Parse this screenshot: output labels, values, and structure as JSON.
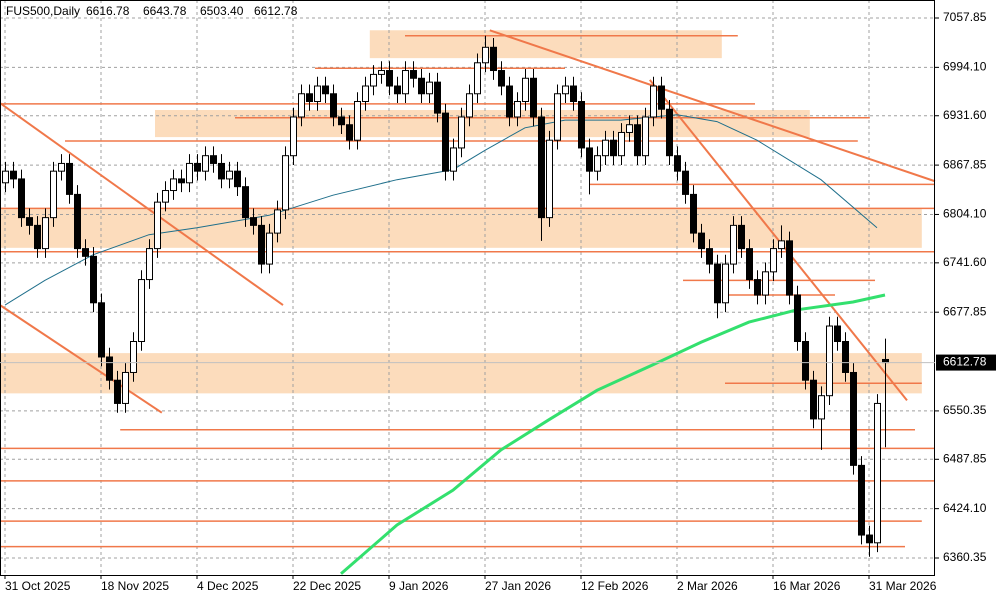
{
  "chart_data": {
    "type": "candlestick",
    "title": "FUS500,Daily",
    "header_labels": [
      "6616.78",
      "6643.78",
      "6503.40",
      "6612.78"
    ],
    "xlim": [
      -0.625,
      116.25
    ],
    "ylim": [
      6338.4,
      7081.1
    ],
    "xticks": [
      {
        "value": 0,
        "label": "31 Oct 2025"
      },
      {
        "value": 12,
        "label": "18 Nov 2025"
      },
      {
        "value": 24,
        "label": "4 Dec 2025"
      },
      {
        "value": 36,
        "label": "22 Dec 2025"
      },
      {
        "value": 48,
        "label": "9 Jan 2026"
      },
      {
        "value": 60,
        "label": "27 Jan 2026"
      },
      {
        "value": 72,
        "label": "12 Feb 2026"
      },
      {
        "value": 84,
        "label": "2 Mar 2026"
      },
      {
        "value": 96,
        "label": "16 Mar 2026"
      },
      {
        "value": 108,
        "label": "31 Mar 2026"
      }
    ],
    "yticks": [
      7057.85,
      {
        "value": 6994.1,
        "label": "6994.10"
      },
      {
        "value": 6931.6,
        "label": "6931.60"
      },
      6867.85,
      {
        "value": 6804.1,
        "label": "6804.10"
      },
      {
        "value": 6741.6,
        "label": "6741.60"
      },
      6677.85,
      6550.35,
      6487.85,
      {
        "value": 6424.1,
        "label": "6424.10"
      },
      6360.35
    ],
    "grid": true,
    "up_color": "#ffffff",
    "down_color": "#000000",
    "level_color": "#f0784a",
    "zone_color": "#fcdcbc",
    "ohlc": [
      [
        6845,
        6872,
        6833,
        6860
      ],
      [
        6860,
        6872,
        6838,
        6850
      ],
      [
        6850,
        6862,
        6788,
        6800
      ],
      [
        6800,
        6812,
        6778,
        6790
      ],
      [
        6790,
        6802,
        6748,
        6760
      ],
      [
        6760,
        6812,
        6748,
        6800
      ],
      [
        6800,
        6872,
        6788,
        6860
      ],
      [
        6860,
        6882,
        6848,
        6870
      ],
      [
        6870,
        6882,
        6818,
        6830
      ],
      [
        6830,
        6842,
        6748,
        6760
      ],
      [
        6760,
        6772,
        6738,
        6750
      ],
      [
        6750,
        6762,
        6678,
        6690
      ],
      [
        6690,
        6702,
        6608,
        6620
      ],
      [
        6620,
        6632,
        6578,
        6590
      ],
      [
        6590,
        6602,
        6548,
        6560
      ],
      [
        6560,
        6612,
        6548,
        6600
      ],
      [
        6600,
        6652,
        6588,
        6640
      ],
      [
        6640,
        6732,
        6628,
        6720
      ],
      [
        6720,
        6772,
        6708,
        6760
      ],
      [
        6760,
        6832,
        6748,
        6820
      ],
      [
        6820,
        6847,
        6808,
        6835
      ],
      [
        6835,
        6862,
        6823,
        6850
      ],
      [
        6850,
        6862,
        6833,
        6845
      ],
      [
        6845,
        6882,
        6833,
        6870
      ],
      [
        6870,
        6882,
        6848,
        6860
      ],
      [
        6860,
        6892,
        6848,
        6880
      ],
      [
        6880,
        6892,
        6858,
        6870
      ],
      [
        6870,
        6882,
        6838,
        6850
      ],
      [
        6850,
        6872,
        6838,
        6860
      ],
      [
        6860,
        6872,
        6828,
        6840
      ],
      [
        6840,
        6852,
        6788,
        6800
      ],
      [
        6800,
        6812,
        6778,
        6790
      ],
      [
        6790,
        6802,
        6728,
        6740
      ],
      [
        6740,
        6792,
        6728,
        6780
      ],
      [
        6780,
        6822,
        6768,
        6810
      ],
      [
        6810,
        6892,
        6798,
        6880
      ],
      [
        6880,
        6942,
        6868,
        6930
      ],
      [
        6930,
        6972,
        6918,
        6960
      ],
      [
        6960,
        6972,
        6938,
        6950
      ],
      [
        6950,
        6982,
        6938,
        6970
      ],
      [
        6970,
        6982,
        6948,
        6960
      ],
      [
        6960,
        6972,
        6918,
        6930
      ],
      [
        6930,
        6942,
        6908,
        6920
      ],
      [
        6920,
        6932,
        6888,
        6900
      ],
      [
        6900,
        6962,
        6888,
        6950
      ],
      [
        6950,
        6982,
        6938,
        6970
      ],
      [
        6970,
        6997,
        6958,
        6985
      ],
      [
        6985,
        7002,
        6973,
        6990
      ],
      [
        6990,
        7002,
        6958,
        6970
      ],
      [
        6970,
        6982,
        6948,
        6960
      ],
      [
        6960,
        7002,
        6948,
        6990
      ],
      [
        6990,
        7002,
        6968,
        6980
      ],
      [
        6980,
        6992,
        6948,
        6960
      ],
      [
        6960,
        6987,
        6948,
        6975
      ],
      [
        6975,
        6987,
        6923,
        6935
      ],
      [
        6935,
        6947,
        6848,
        6860
      ],
      [
        6860,
        6902,
        6848,
        6890
      ],
      [
        6890,
        6942,
        6878,
        6930
      ],
      [
        6930,
        6972,
        6918,
        6960
      ],
      [
        6960,
        7012,
        6948,
        7000
      ],
      [
        7000,
        7035,
        6988,
        7020
      ],
      [
        7020,
        7032,
        6978,
        6990
      ],
      [
        6990,
        7002,
        6958,
        6970
      ],
      [
        6970,
        6982,
        6918,
        6930
      ],
      [
        6930,
        6962,
        6918,
        6950
      ],
      [
        6950,
        6992,
        6938,
        6980
      ],
      [
        6980,
        6992,
        6918,
        6930
      ],
      [
        6930,
        6942,
        6770,
        6800
      ],
      [
        6800,
        6912,
        6788,
        6900
      ],
      [
        6900,
        6972,
        6888,
        6960
      ],
      [
        6960,
        6982,
        6948,
        6970
      ],
      [
        6970,
        6982,
        6938,
        6950
      ],
      [
        6950,
        6962,
        6878,
        6890
      ],
      [
        6890,
        6902,
        6830,
        6860
      ],
      [
        6860,
        6892,
        6848,
        6880
      ],
      [
        6880,
        6912,
        6868,
        6900
      ],
      [
        6900,
        6912,
        6868,
        6880
      ],
      [
        6880,
        6922,
        6868,
        6910
      ],
      [
        6910,
        6932,
        6898,
        6920
      ],
      [
        6920,
        6932,
        6868,
        6880
      ],
      [
        6880,
        6942,
        6868,
        6930
      ],
      [
        6930,
        6982,
        6918,
        6970
      ],
      [
        6970,
        6982,
        6928,
        6940
      ],
      [
        6940,
        6952,
        6868,
        6880
      ],
      [
        6880,
        6892,
        6848,
        6860
      ],
      [
        6860,
        6872,
        6818,
        6830
      ],
      [
        6830,
        6842,
        6768,
        6780
      ],
      [
        6780,
        6792,
        6748,
        6760
      ],
      [
        6760,
        6772,
        6728,
        6740
      ],
      [
        6740,
        6752,
        6670,
        6690
      ],
      [
        6690,
        6752,
        6678,
        6740
      ],
      [
        6740,
        6802,
        6728,
        6790
      ],
      [
        6790,
        6802,
        6748,
        6760
      ],
      [
        6760,
        6772,
        6708,
        6720
      ],
      [
        6720,
        6732,
        6688,
        6700
      ],
      [
        6700,
        6742,
        6688,
        6730
      ],
      [
        6730,
        6772,
        6718,
        6760
      ],
      [
        6760,
        6790,
        6748,
        6770
      ],
      [
        6770,
        6782,
        6688,
        6700
      ],
      [
        6700,
        6712,
        6628,
        6640
      ],
      [
        6640,
        6652,
        6578,
        6590
      ],
      [
        6590,
        6602,
        6528,
        6540
      ],
      [
        6540,
        6582,
        6500,
        6570
      ],
      [
        6570,
        6672,
        6558,
        6660
      ],
      [
        6660,
        6672,
        6628,
        6640
      ],
      [
        6640,
        6652,
        6588,
        6600
      ],
      [
        6600,
        6612,
        6468,
        6480
      ],
      [
        6480,
        6492,
        6378,
        6390
      ],
      [
        6390,
        6402,
        6362,
        6380
      ],
      [
        6380,
        6572,
        6368,
        6560
      ],
      [
        6616.78,
        6643.78,
        6503.4,
        6612.78
      ]
    ],
    "ma": [
      {
        "color": "#1f6f8b",
        "width": 1,
        "x": [
          0,
          5,
          11,
          18,
          24,
          33,
          41,
          49,
          56,
          60,
          65,
          70,
          77,
          84,
          89,
          94,
          102,
          109
        ],
        "values": [
          6687,
          6719,
          6752,
          6778,
          6787,
          6803,
          6829,
          6849,
          6862,
          6887,
          6916,
          6926,
          6926,
          6933,
          6924,
          6900,
          6849,
          6787
        ]
      },
      {
        "color": "#33e06e",
        "width": 3,
        "x": [
          42,
          49,
          56,
          62,
          68,
          74,
          81,
          87,
          93,
          99,
          106,
          110
        ],
        "values": [
          6340,
          6403,
          6448,
          6500,
          6539,
          6577,
          6610,
          6639,
          6665,
          6681,
          6691,
          6700
        ]
      }
    ],
    "zones": [
      {
        "x": [
          45.6,
          89.6
        ],
        "range": [
          7006,
          7042
        ]
      },
      {
        "x": [
          18.75,
          100.6
        ],
        "range": [
          6904,
          6939
        ]
      },
      {
        "x": [
          -0.625,
          114.6
        ],
        "range": [
          6761,
          6812
        ]
      },
      {
        "x": [
          -0.625,
          114.6
        ],
        "range": [
          6573,
          6625
        ]
      }
    ],
    "levels": [
      {
        "x": [
          50,
          91.6
        ],
        "value": 7035
      },
      {
        "x": [
          38.75,
          70
        ],
        "value": 6993
      },
      {
        "x": [
          -0.625,
          93.75
        ],
        "value": 6947
      },
      {
        "x": [
          28.75,
          108.1
        ],
        "value": 6929
      },
      {
        "x": [
          7.5,
          106.6
        ],
        "value": 6899
      },
      {
        "x": [
          73.1,
          116.25
        ],
        "value": 6843
      },
      {
        "x": [
          -0.625,
          116.25
        ],
        "value": 6812
      },
      {
        "x": [
          -0.625,
          116.25
        ],
        "value": 6756
      },
      {
        "x": [
          84.75,
          108.75
        ],
        "value": 6719
      },
      {
        "x": [
          90,
          103.75
        ],
        "value": 6700
      },
      {
        "x": [
          90,
          114.6
        ],
        "value": 6586
      },
      {
        "x": [
          14.4,
          113.75
        ],
        "value": 6526
      },
      {
        "x": [
          -0.625,
          116.25
        ],
        "value": 6502
      },
      {
        "x": [
          -0.625,
          116.25
        ],
        "value": 6460
      },
      {
        "x": [
          -0.625,
          114.6
        ],
        "value": 6408
      },
      {
        "x": [
          -0.625,
          112.5
        ],
        "value": 6375
      }
    ],
    "trendlines": [
      {
        "x": [
          -0.625,
          34.75
        ],
        "values": [
          6948,
          6687
        ]
      },
      {
        "x": [
          -0.625,
          19.6
        ],
        "values": [
          6687,
          6548
        ]
      },
      {
        "x": [
          60.6,
          116.25
        ],
        "values": [
          7042,
          6847
        ]
      },
      {
        "x": [
          80.6,
          112.75
        ],
        "values": [
          6978,
          6564
        ]
      }
    ]
  }
}
